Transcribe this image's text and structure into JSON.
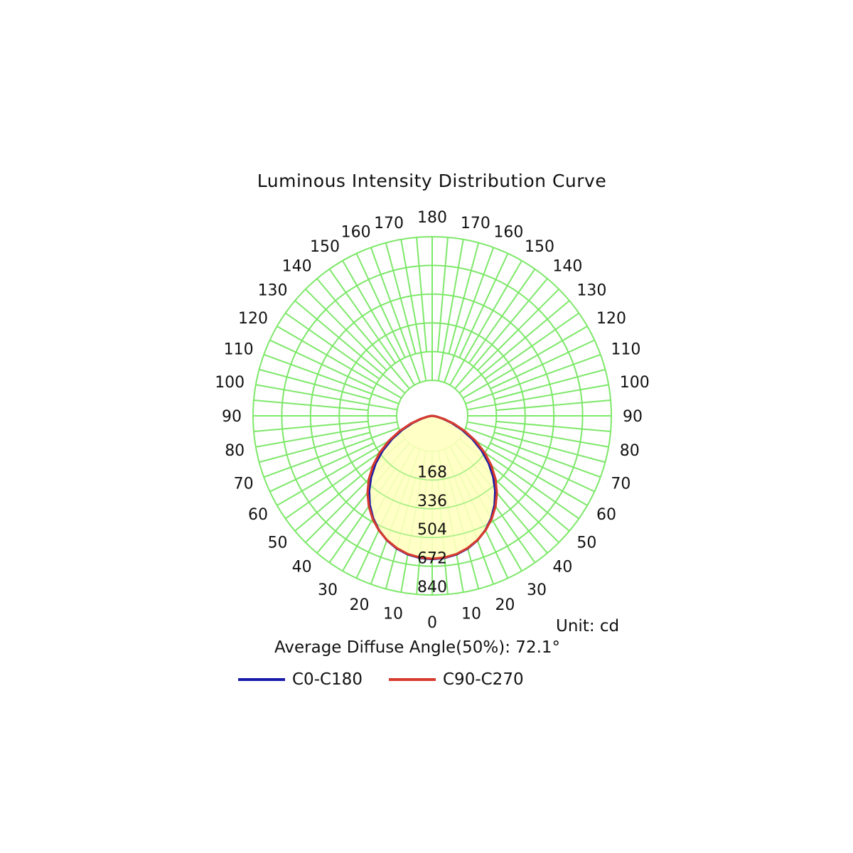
{
  "title": "Luminous Intensity Distribution Curve",
  "unit_label": "Unit: cd",
  "average_angle_label": "Average Diffuse Angle(50%): 72.1°",
  "colors": {
    "grid": "#7ee86a",
    "fill": "#ffffc0",
    "c0_c180": "#1a1aa8",
    "c90_c270": "#d63b2e"
  },
  "chart_data": {
    "type": "polar",
    "title": "Luminous Intensity Distribution Curve",
    "unit": "cd",
    "radial_ticks": [
      168,
      336,
      504,
      672,
      840
    ],
    "radial_max": 840,
    "angle_labels_left": [
      "0",
      "10",
      "20",
      "30",
      "40",
      "50",
      "60",
      "70",
      "80",
      "90",
      "100",
      "110",
      "120",
      "130",
      "140",
      "150",
      "160",
      "170",
      "180"
    ],
    "angle_labels_right": [
      "10",
      "20",
      "30",
      "40",
      "50",
      "60",
      "70",
      "80",
      "90",
      "100",
      "110",
      "120",
      "130",
      "140",
      "150",
      "160",
      "170"
    ],
    "angles": [
      0,
      5,
      10,
      15,
      20,
      25,
      30,
      35,
      40,
      45,
      50,
      55,
      60,
      65,
      70,
      75,
      80,
      85,
      90
    ],
    "series": [
      {
        "name": "C0-C180",
        "values": [
          672,
          669,
          660,
          644,
          621,
          591,
          554,
          510,
          460,
          405,
          346,
          283,
          218,
          155,
          98,
          52,
          20,
          5,
          0
        ]
      },
      {
        "name": "C90-C270",
        "values": [
          670,
          667,
          658,
          642,
          620,
          592,
          558,
          518,
          472,
          420,
          362,
          300,
          234,
          168,
          108,
          58,
          22,
          6,
          0
        ]
      }
    ],
    "average_diffuse_angle_50pct": 72.1
  },
  "legend": [
    {
      "label": "C0-C180",
      "color": "#1a1aa8"
    },
    {
      "label": "C90-C270",
      "color": "#d63b2e"
    }
  ]
}
